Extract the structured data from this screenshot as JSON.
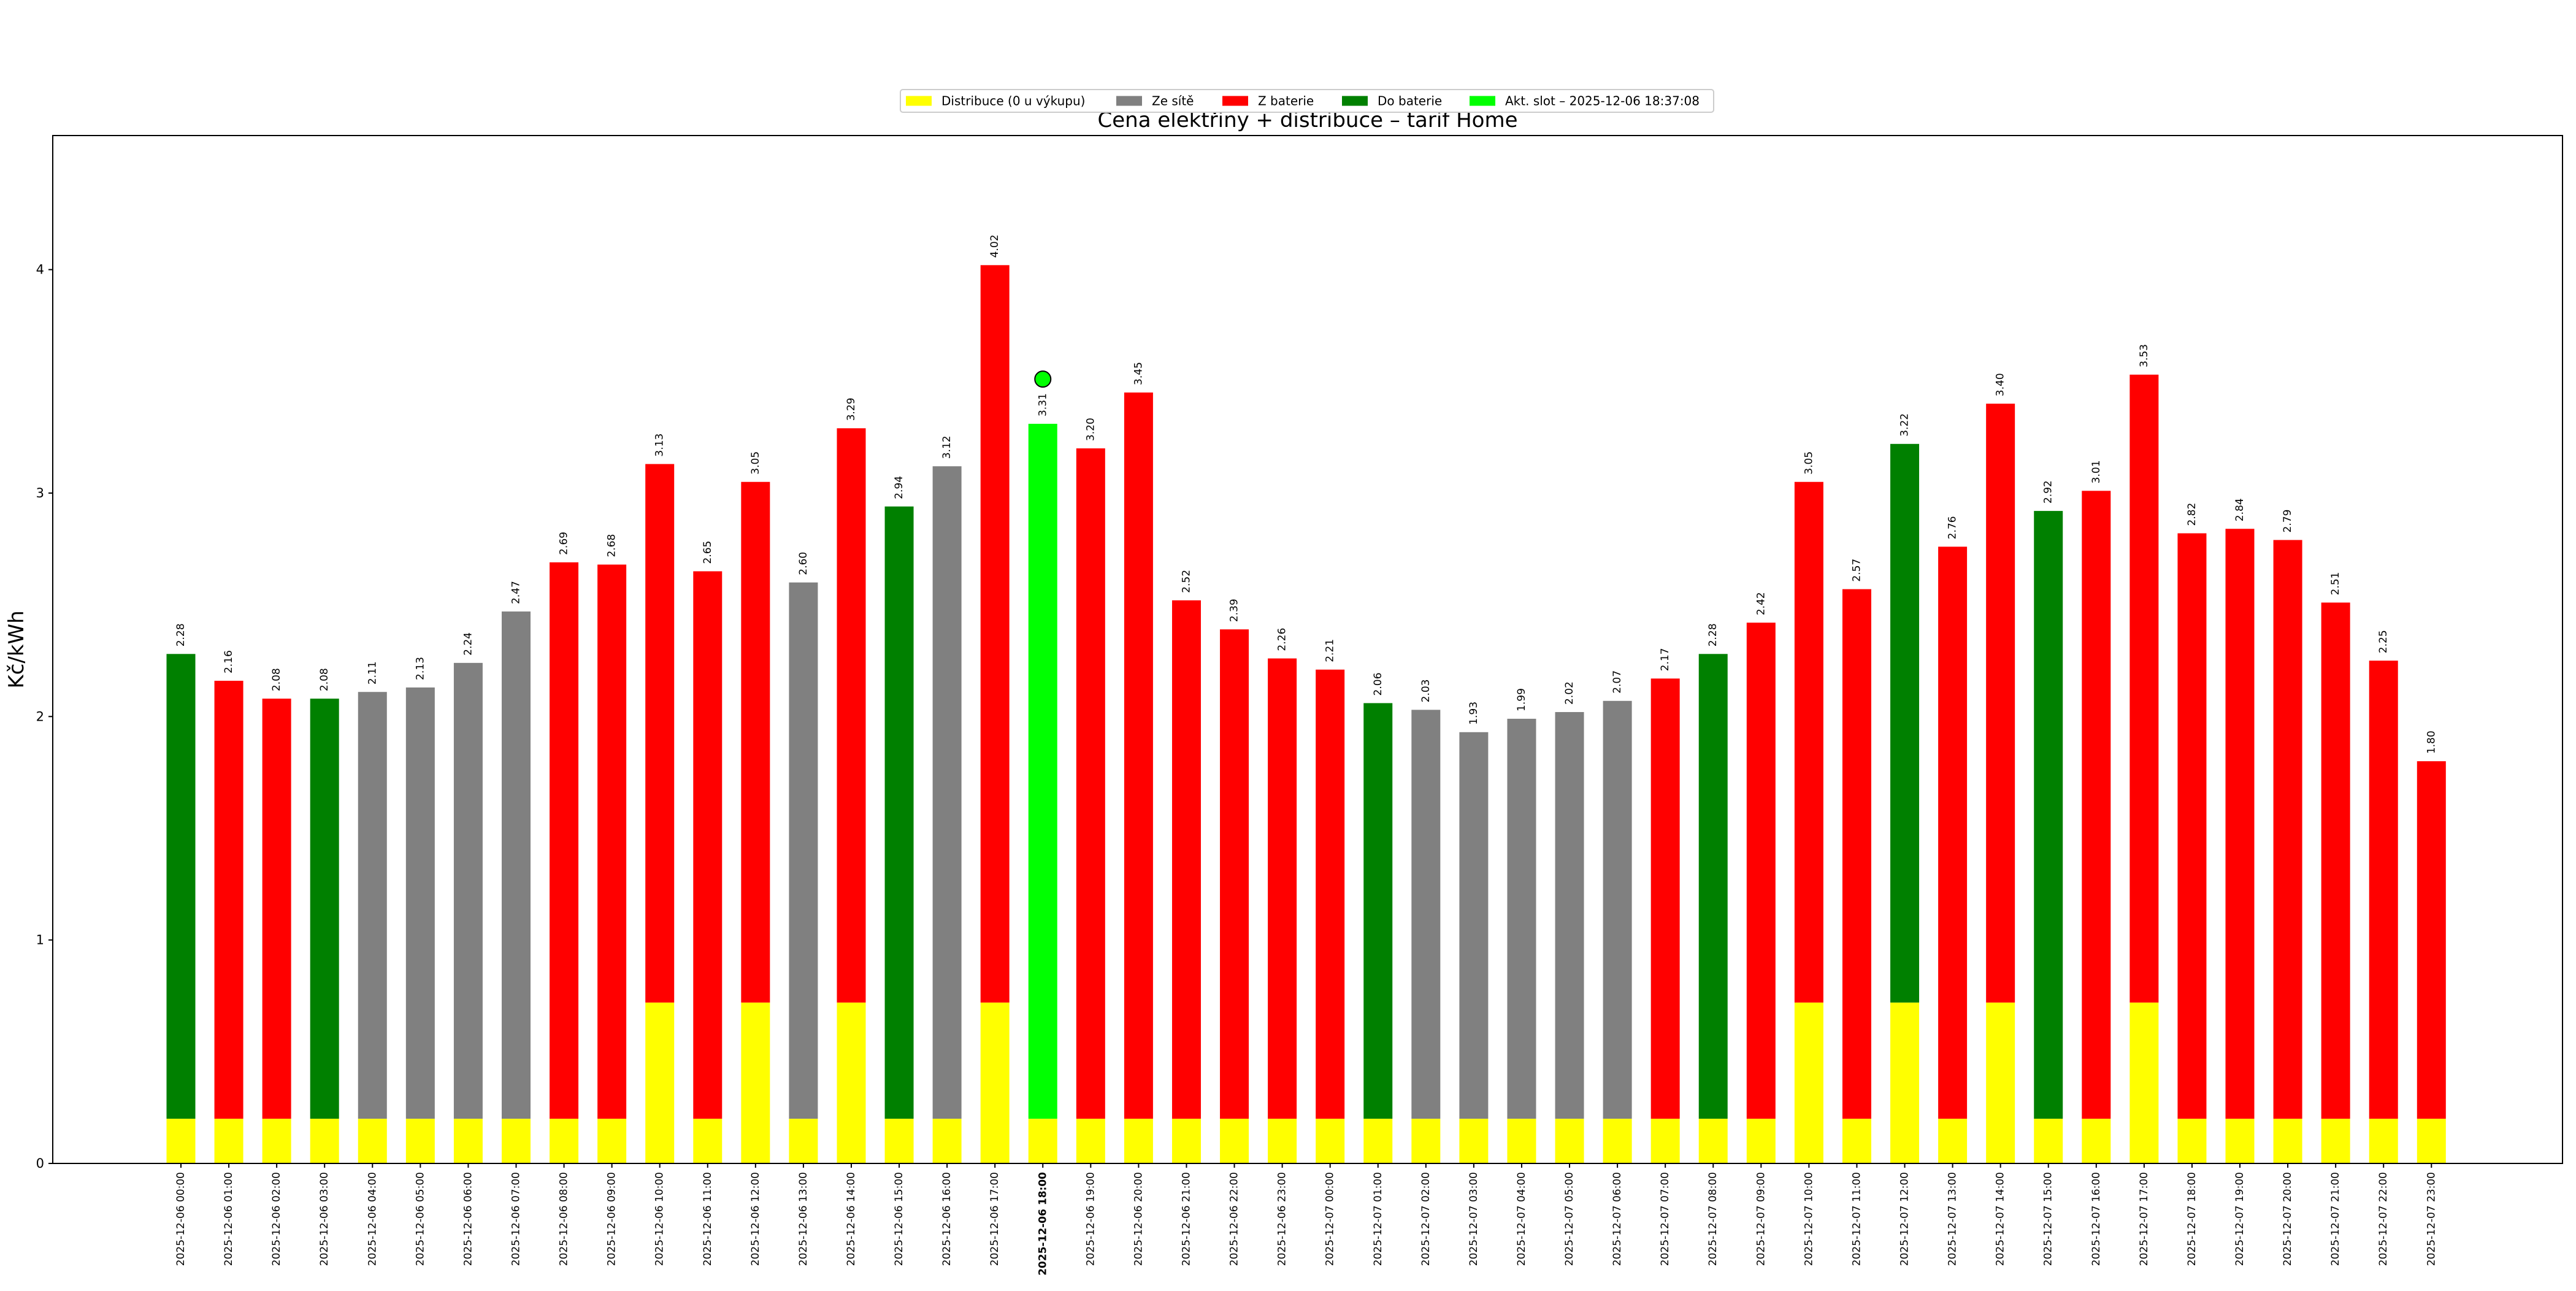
{
  "chart_data": {
    "type": "bar",
    "stacked": true,
    "title": "Cena elektřiny + distribuce – tarif Home",
    "xlabel": "",
    "ylabel": "Kč/kWh",
    "ylim": [
      0,
      4.6
    ],
    "yticks": [
      "0",
      "1",
      "2",
      "3",
      "4"
    ],
    "grid": false,
    "legend_position": "top-center",
    "highlight_index": 18,
    "highlight_marker_value": 3.51,
    "legend": [
      {
        "label": "Distribuce (0 u výkupu)",
        "color": "#ffff00"
      },
      {
        "label": "Ze sítě",
        "color": "#808080"
      },
      {
        "label": "Z baterie",
        "color": "#ff0000"
      },
      {
        "label": "Do baterie",
        "color": "#008000"
      },
      {
        "label": "Akt. slot – 2025-12-06 18:37:08",
        "color": "#00ff00"
      }
    ],
    "colors": {
      "distribution": "#ffff00",
      "grid": "#808080",
      "battery_out": "#ff0000",
      "battery_in": "#008000",
      "current": "#00ff00"
    },
    "categories": [
      "2025-12-06 00:00",
      "2025-12-06 01:00",
      "2025-12-06 02:00",
      "2025-12-06 03:00",
      "2025-12-06 04:00",
      "2025-12-06 05:00",
      "2025-12-06 06:00",
      "2025-12-06 07:00",
      "2025-12-06 08:00",
      "2025-12-06 09:00",
      "2025-12-06 10:00",
      "2025-12-06 11:00",
      "2025-12-06 12:00",
      "2025-12-06 13:00",
      "2025-12-06 14:00",
      "2025-12-06 15:00",
      "2025-12-06 16:00",
      "2025-12-06 17:00",
      "2025-12-06 18:00",
      "2025-12-06 19:00",
      "2025-12-06 20:00",
      "2025-12-06 21:00",
      "2025-12-06 22:00",
      "2025-12-06 23:00",
      "2025-12-07 00:00",
      "2025-12-07 01:00",
      "2025-12-07 02:00",
      "2025-12-07 03:00",
      "2025-12-07 04:00",
      "2025-12-07 05:00",
      "2025-12-07 06:00",
      "2025-12-07 07:00",
      "2025-12-07 08:00",
      "2025-12-07 09:00",
      "2025-12-07 10:00",
      "2025-12-07 11:00",
      "2025-12-07 12:00",
      "2025-12-07 13:00",
      "2025-12-07 14:00",
      "2025-12-07 15:00",
      "2025-12-07 16:00",
      "2025-12-07 17:00",
      "2025-12-07 18:00",
      "2025-12-07 19:00",
      "2025-12-07 20:00",
      "2025-12-07 21:00",
      "2025-12-07 22:00",
      "2025-12-07 23:00"
    ],
    "totals": [
      2.28,
      2.16,
      2.08,
      2.08,
      2.11,
      2.13,
      2.24,
      2.47,
      2.69,
      2.68,
      3.13,
      2.65,
      3.05,
      2.6,
      3.29,
      2.94,
      3.12,
      4.02,
      3.31,
      3.2,
      3.45,
      2.52,
      2.39,
      2.26,
      2.21,
      2.06,
      2.03,
      1.93,
      1.99,
      2.02,
      2.07,
      2.17,
      2.28,
      2.42,
      3.05,
      2.57,
      3.22,
      2.76,
      3.4,
      2.92,
      3.01,
      3.53,
      2.82,
      2.84,
      2.79,
      2.51,
      2.25,
      1.8
    ],
    "value_labels": [
      "2.28",
      "2.16",
      "2.08",
      "2.08",
      "2.11",
      "2.13",
      "2.24",
      "2.47",
      "2.69",
      "2.68",
      "3.13",
      "2.65",
      "3.05",
      "2.60",
      "3.29",
      "2.94",
      "3.12",
      "4.02",
      "3.31",
      "3.20",
      "3.45",
      "2.52",
      "2.39",
      "2.26",
      "2.21",
      "2.06",
      "2.03",
      "1.93",
      "1.99",
      "2.02",
      "2.07",
      "2.17",
      "2.28",
      "2.42",
      "3.05",
      "2.57",
      "3.22",
      "2.76",
      "3.40",
      "2.92",
      "3.01",
      "3.53",
      "2.82",
      "2.84",
      "2.79",
      "2.51",
      "2.25",
      "1.80"
    ],
    "distribution": [
      0.2,
      0.2,
      0.2,
      0.2,
      0.2,
      0.2,
      0.2,
      0.2,
      0.2,
      0.2,
      0.72,
      0.2,
      0.72,
      0.2,
      0.72,
      0.2,
      0.2,
      0.72,
      0.2,
      0.2,
      0.2,
      0.2,
      0.2,
      0.2,
      0.2,
      0.2,
      0.2,
      0.2,
      0.2,
      0.2,
      0.2,
      0.2,
      0.2,
      0.2,
      0.72,
      0.2,
      0.72,
      0.2,
      0.72,
      0.2,
      0.2,
      0.72,
      0.2,
      0.2,
      0.2,
      0.2,
      0.2,
      0.2
    ],
    "mode": [
      "in",
      "out",
      "out",
      "in",
      "grid",
      "grid",
      "grid",
      "grid",
      "out",
      "out",
      "out",
      "out",
      "out",
      "grid",
      "out",
      "in",
      "grid",
      "out",
      "current",
      "out",
      "out",
      "out",
      "out",
      "out",
      "out",
      "in",
      "grid",
      "grid",
      "grid",
      "grid",
      "grid",
      "out",
      "in",
      "out",
      "out",
      "out",
      "in",
      "out",
      "out",
      "in",
      "out",
      "out",
      "out",
      "out",
      "out",
      "out",
      "out",
      "out"
    ]
  }
}
